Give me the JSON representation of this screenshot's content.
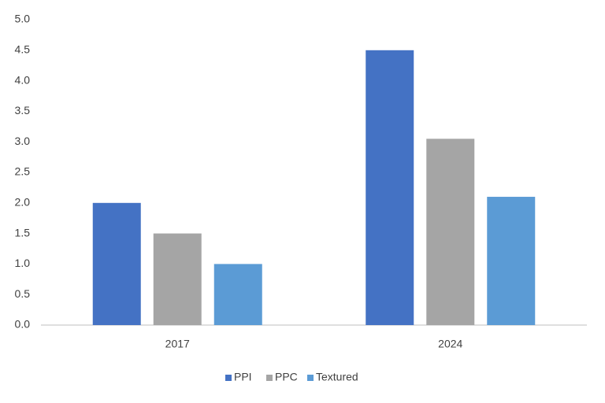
{
  "chart_data": {
    "type": "bar",
    "categories": [
      "2017",
      "2024"
    ],
    "series": [
      {
        "name": "PPI",
        "color": "#4472c4",
        "values": [
          2.0,
          4.5
        ]
      },
      {
        "name": "PPC",
        "color": "#a5a5a5",
        "values": [
          1.5,
          3.05
        ]
      },
      {
        "name": "Textured",
        "color": "#5b9bd5",
        "values": [
          1.0,
          2.1
        ]
      }
    ],
    "ylim": [
      0,
      5
    ],
    "yticks": [
      {
        "value": 0,
        "label": "0.0"
      },
      0.5,
      {
        "value": 1,
        "label": "1.0"
      },
      1.5,
      {
        "value": 2,
        "label": "2.0"
      },
      2.5,
      {
        "value": 3,
        "label": "3.0"
      },
      3.5,
      {
        "value": 4,
        "label": "4.0"
      },
      4.5,
      {
        "value": 5,
        "label": "5.0"
      }
    ],
    "grid": false,
    "legend": "bottom"
  }
}
